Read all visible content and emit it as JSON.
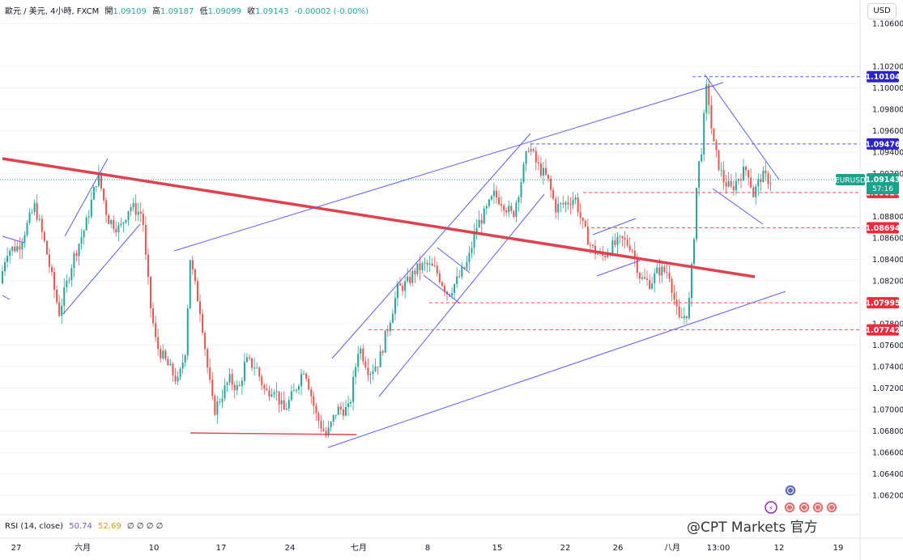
{
  "header": {
    "symbol": "歐元 / 美元, 4小時, FXCM",
    "open_label": "開",
    "open": "1.09109",
    "high_label": "高",
    "high": "1.09187",
    "low_label": "低",
    "low": "1.09099",
    "close_label": "收",
    "close": "1.09143",
    "change": "-0.00002 (-0.00%)"
  },
  "currency_button": "USD",
  "rsi": {
    "label": "RSI (14, close)",
    "value1": "50.74",
    "value2": "52.69",
    "placeholders": "∅ ∅ ∅ ∅"
  },
  "watermark": {
    "text": "@CPT Markets 官方"
  },
  "colors": {
    "up": "#26a69a",
    "down": "#ef5350",
    "trendline": "#5b5ef0",
    "main_trend": "#e0414f",
    "hline_red": "#ef5350",
    "hline_blue": "#5b5ef0",
    "badge_blue": "#2a24c9",
    "badge_red": "#ef2b3b",
    "badge_green": "#1aa38c"
  },
  "chart_data": {
    "type": "candlestick",
    "y_ticks": [
      "1.10600",
      "1.10200",
      "1.10000",
      "1.09800",
      "1.09600",
      "1.09400",
      "1.09200",
      "1.08800",
      "1.08600",
      "1.08400",
      "1.08200",
      "1.07800",
      "1.07600",
      "1.07400",
      "1.07200",
      "1.07000",
      "1.06800",
      "1.06600",
      "1.06400",
      "1.06200"
    ],
    "ylim": [
      1.061,
      1.1065
    ],
    "x_ticks": [
      "27",
      "六月",
      "10",
      "17",
      "24",
      "七月",
      "8",
      "15",
      "22",
      "26",
      "八月",
      "13:00",
      "12",
      "19"
    ],
    "price_labels": [
      {
        "price": 1.10104,
        "text": "1.10104",
        "style": "blue"
      },
      {
        "price": 1.09476,
        "text": "1.09476",
        "style": "blue"
      },
      {
        "price": 1.09024,
        "text": "1.09024",
        "style": "red"
      },
      {
        "price": 1.08694,
        "text": "1.08694",
        "style": "red"
      },
      {
        "price": 1.07995,
        "text": "1.07995",
        "style": "red"
      },
      {
        "price": 1.07742,
        "text": "1.07742",
        "style": "red"
      }
    ],
    "current": {
      "symbol": "EURUSD",
      "price": 1.09143,
      "text": "1.09143",
      "countdown": "57:16"
    },
    "keypoints": [
      [
        0,
        1.081
      ],
      [
        10,
        1.0848
      ],
      [
        25,
        1.0852
      ],
      [
        45,
        1.089
      ],
      [
        58,
        1.0852
      ],
      [
        75,
        1.079
      ],
      [
        92,
        1.084
      ],
      [
        108,
        1.0872
      ],
      [
        123,
        1.092
      ],
      [
        135,
        1.0878
      ],
      [
        150,
        1.0868
      ],
      [
        162,
        1.089
      ],
      [
        178,
        1.0882
      ],
      [
        182,
        1.084
      ],
      [
        188,
        1.0795
      ],
      [
        195,
        1.076
      ],
      [
        210,
        1.074
      ],
      [
        222,
        1.0725
      ],
      [
        232,
        1.076
      ],
      [
        236,
        1.0845
      ],
      [
        242,
        1.0818
      ],
      [
        250,
        1.079
      ],
      [
        258,
        1.074
      ],
      [
        266,
        1.0698
      ],
      [
        275,
        1.0712
      ],
      [
        285,
        1.0728
      ],
      [
        297,
        1.0718
      ],
      [
        305,
        1.0745
      ],
      [
        318,
        1.074
      ],
      [
        330,
        1.0715
      ],
      [
        340,
        1.0722
      ],
      [
        352,
        1.0698
      ],
      [
        365,
        1.0716
      ],
      [
        378,
        1.074
      ],
      [
        392,
        1.0695
      ],
      [
        405,
        1.0675
      ],
      [
        418,
        1.07
      ],
      [
        433,
        1.07
      ],
      [
        445,
        1.076
      ],
      [
        458,
        1.0735
      ],
      [
        470,
        1.0745
      ],
      [
        482,
        1.078
      ],
      [
        493,
        1.0812
      ],
      [
        505,
        1.0818
      ],
      [
        515,
        1.083
      ],
      [
        528,
        1.0835
      ],
      [
        540,
        1.083
      ],
      [
        555,
        1.0808
      ],
      [
        568,
        1.0822
      ],
      [
        580,
        1.0838
      ],
      [
        590,
        1.087
      ],
      [
        600,
        1.0882
      ],
      [
        612,
        1.09
      ],
      [
        622,
        1.0894
      ],
      [
        635,
        1.088
      ],
      [
        645,
        1.0912
      ],
      [
        655,
        1.0947
      ],
      [
        665,
        1.0928
      ],
      [
        678,
        1.0915
      ],
      [
        688,
        1.0888
      ],
      [
        700,
        1.0892
      ],
      [
        712,
        1.0898
      ],
      [
        722,
        1.087
      ],
      [
        733,
        1.085
      ],
      [
        745,
        1.0842
      ],
      [
        758,
        1.0852
      ],
      [
        770,
        1.0858
      ],
      [
        782,
        1.0852
      ],
      [
        793,
        1.0822
      ],
      [
        805,
        1.0818
      ],
      [
        815,
        1.083
      ],
      [
        828,
        1.0828
      ],
      [
        840,
        1.0782
      ],
      [
        852,
        1.0792
      ],
      [
        858,
        1.085
      ],
      [
        863,
        1.092
      ],
      [
        868,
        1.0942
      ],
      [
        875,
        1.1005
      ],
      [
        882,
        1.095
      ],
      [
        888,
        1.0932
      ],
      [
        895,
        1.0914
      ],
      [
        905,
        1.0905
      ],
      [
        915,
        1.0918
      ],
      [
        925,
        1.0925
      ],
      [
        932,
        1.09
      ],
      [
        942,
        1.0918
      ],
      [
        952,
        1.0914
      ]
    ]
  }
}
